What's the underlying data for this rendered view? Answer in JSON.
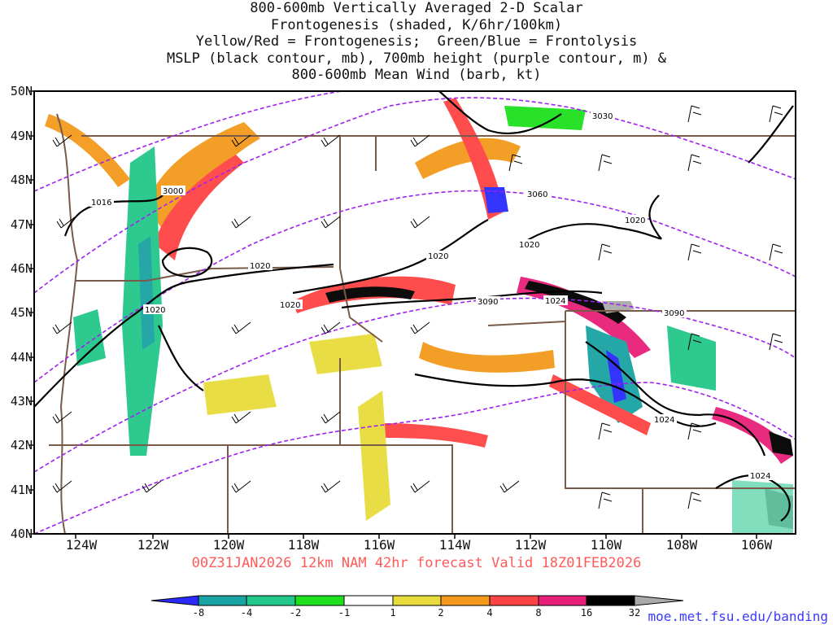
{
  "title_lines": [
    "800-600mb Vertically Averaged 2-D Scalar",
    "Frontogenesis (shaded, K/6hr/100km)",
    "Yellow/Red = Frontogenesis;  Green/Blue = Frontolysis",
    "MSLP (black contour, mb), 700mb height (purple contour, m) &",
    "800-600mb Mean Wind (barb, kt)"
  ],
  "axes": {
    "lat_labels": [
      "50N",
      "49N",
      "48N",
      "47N",
      "46N",
      "45N",
      "44N",
      "43N",
      "42N",
      "41N",
      "40N"
    ],
    "lon_labels": [
      "124W",
      "122W",
      "120W",
      "118W",
      "116W",
      "114W",
      "112W",
      "110W",
      "108W",
      "106W"
    ]
  },
  "contour_labels": {
    "mslp": [
      "1016",
      "1020",
      "1020",
      "1020",
      "1020",
      "1020",
      "1020",
      "1024",
      "1024",
      "1024"
    ],
    "height": [
      "3000",
      "3030",
      "3060",
      "3090",
      "3090"
    ]
  },
  "caption": "00Z31JAN2026 12km NAM 42hr forecast Valid 18Z01FEB2026",
  "colorbar": {
    "ticks": [
      "-8",
      "-4",
      "-2",
      "-1",
      "1",
      "2",
      "4",
      "8",
      "16",
      "32"
    ],
    "colors": [
      "#2a2aff",
      "#1aa3a3",
      "#22c78a",
      "#1ee01e",
      "#ffffff",
      "#e8dc3c",
      "#f39a1c",
      "#ff4444",
      "#e8207a",
      "#000000",
      "#aaaaaa"
    ]
  },
  "credit": "moe.met.fsu.edu/banding",
  "colors": {
    "state_borders": "#7a5a48",
    "mslp": "#000000",
    "height": "#a020f0",
    "barbs": "#000000"
  }
}
